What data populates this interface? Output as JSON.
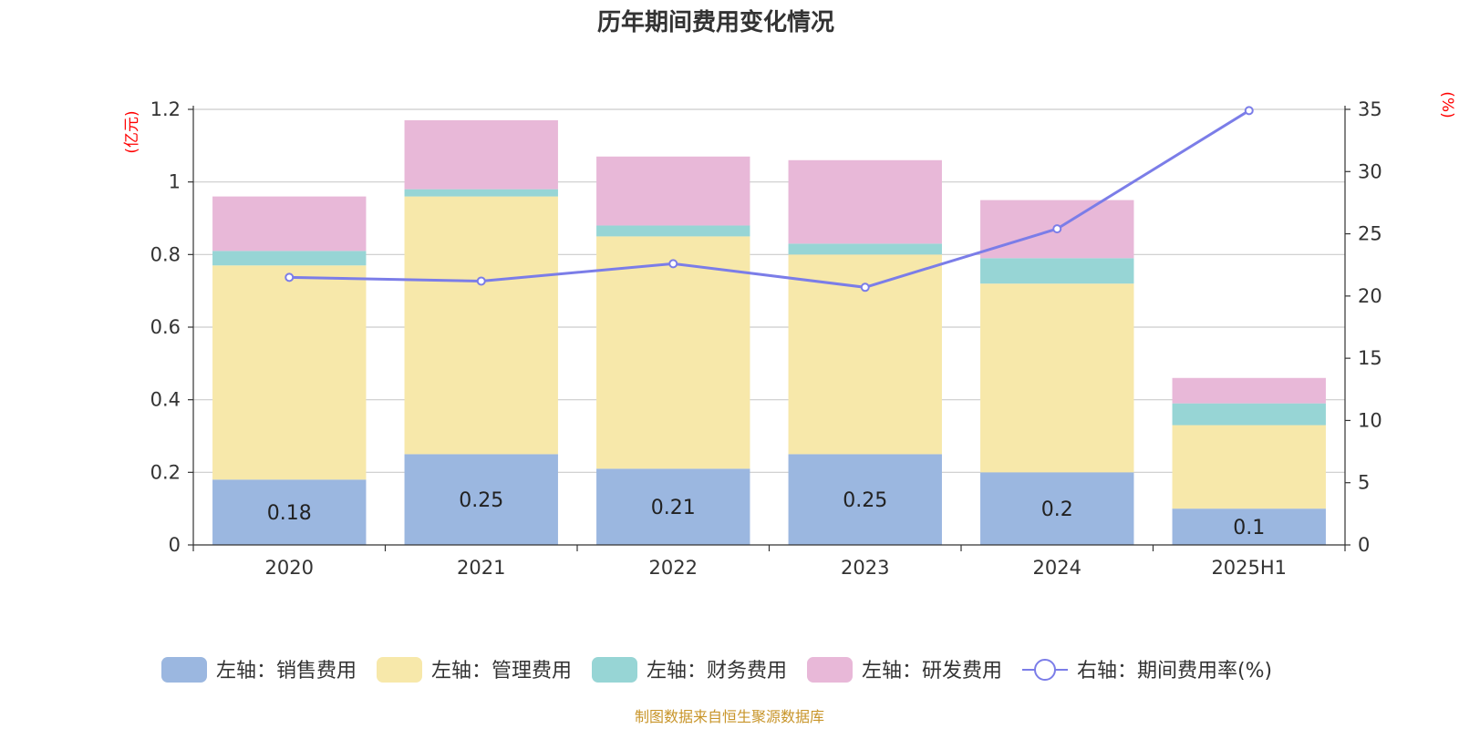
{
  "chart_data": {
    "type": "bar",
    "stacked": true,
    "title": "历年期间费用变化情况",
    "categories": [
      "2020",
      "2021",
      "2022",
      "2023",
      "2024",
      "2025H1"
    ],
    "left_axis": {
      "unit_label": "(亿元)",
      "ylim": [
        0,
        1.2
      ],
      "ticks": [
        "0",
        "0.2",
        "0.4",
        "0.6",
        "0.8",
        "1",
        "1.2"
      ]
    },
    "right_axis": {
      "unit_label": "(%)",
      "ylim": [
        0,
        35
      ],
      "ticks": [
        "0",
        "5",
        "10",
        "15",
        "20",
        "25",
        "30",
        "35"
      ]
    },
    "grid": true,
    "legend_position": "bottom",
    "series": [
      {
        "name": "左轴：销售费用",
        "axis": "left",
        "type": "bar",
        "color": "#9bb7e0",
        "values": [
          0.18,
          0.25,
          0.21,
          0.25,
          0.2,
          0.1
        ],
        "data_labels": [
          "0.18",
          "0.25",
          "0.21",
          "0.25",
          "0.2",
          "0.1"
        ]
      },
      {
        "name": "左轴：管理费用",
        "axis": "left",
        "type": "bar",
        "color": "#f7e8aa",
        "values": [
          0.59,
          0.71,
          0.64,
          0.55,
          0.52,
          0.23
        ]
      },
      {
        "name": "左轴：财务费用",
        "axis": "left",
        "type": "bar",
        "color": "#97d5d5",
        "values": [
          0.04,
          0.02,
          0.03,
          0.03,
          0.07,
          0.06
        ]
      },
      {
        "name": "左轴：研发费用",
        "axis": "left",
        "type": "bar",
        "color": "#e8b8d8",
        "values": [
          0.15,
          0.19,
          0.19,
          0.23,
          0.16,
          0.07
        ]
      },
      {
        "name": "右轴：期间费用率(%)",
        "axis": "right",
        "type": "line",
        "color": "#7b7de8",
        "values": [
          21.5,
          21.2,
          22.6,
          20.7,
          25.4,
          34.9
        ]
      }
    ],
    "source_note": "制图数据来自恒生聚源数据库"
  }
}
